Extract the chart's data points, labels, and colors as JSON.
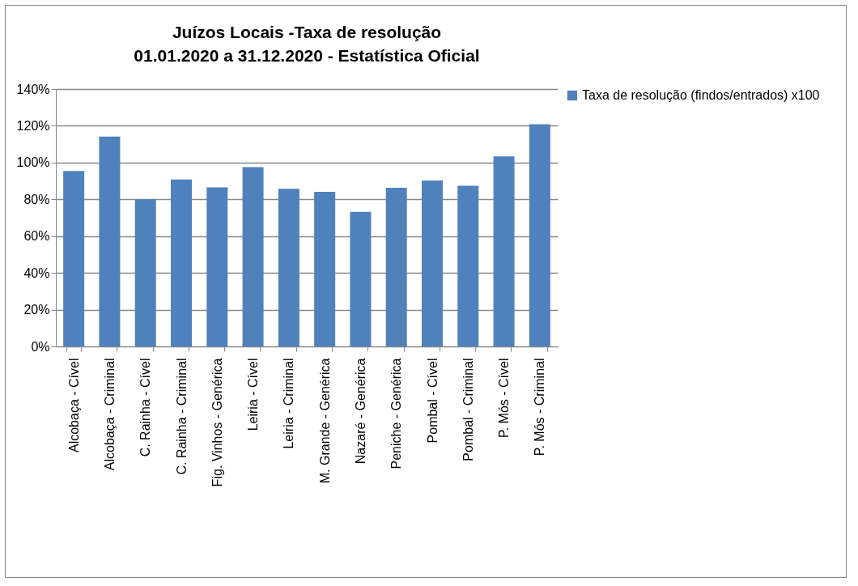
{
  "chart_data": {
    "type": "bar",
    "title": "Juízos Locais -Taxa de resolução",
    "subtitle": "01.01.2020 a 31.12.2020 - Estatística Oficial",
    "categories": [
      "Alcobaça - Cível",
      "Alcobaça - Criminal",
      "C. Rainha - Cível",
      "C. Rainha - Criminal",
      "Fig. Vinhos - Genérica",
      "Leiria - Cível",
      "Leiria - Criminal",
      "M. Grande - Genérica",
      "Nazaré - Genérica",
      "Peniche - Genérica",
      "Pombal - Cível",
      "Pombal - Criminal",
      "P. Mós - Cível",
      "P. Mós - Criminal"
    ],
    "series": [
      {
        "name": "Taxa de resolução (findos/entrados) x100",
        "color": "#4f81bd",
        "values": [
          95.4,
          114.1,
          80,
          90.8,
          86.5,
          97.5,
          85.7,
          84.1,
          73.2,
          86.3,
          90.3,
          87.4,
          103.3,
          120.9
        ]
      }
    ],
    "ylim": [
      0,
      140
    ],
    "yticks": [
      {
        "value": 0,
        "label": "0%"
      },
      {
        "value": 20,
        "label": "20%"
      },
      {
        "value": 40,
        "label": "40%"
      },
      {
        "value": 60,
        "label": "60%"
      },
      {
        "value": 80,
        "label": "80%"
      },
      {
        "value": 100,
        "label": "100%"
      },
      {
        "value": 120,
        "label": "120%"
      },
      {
        "value": 140,
        "label": "140%"
      }
    ],
    "grid": "y",
    "legend": "right"
  }
}
